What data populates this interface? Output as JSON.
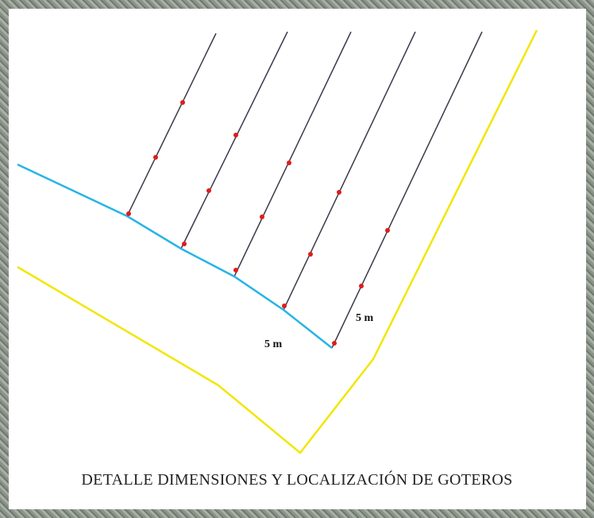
{
  "labels": {
    "right_spacing": "5 m",
    "bottom_spacing": "5 m"
  },
  "title": "DETALLE DIMENSIONES Y LOCALIZACIÓN DE GOTEROS"
}
